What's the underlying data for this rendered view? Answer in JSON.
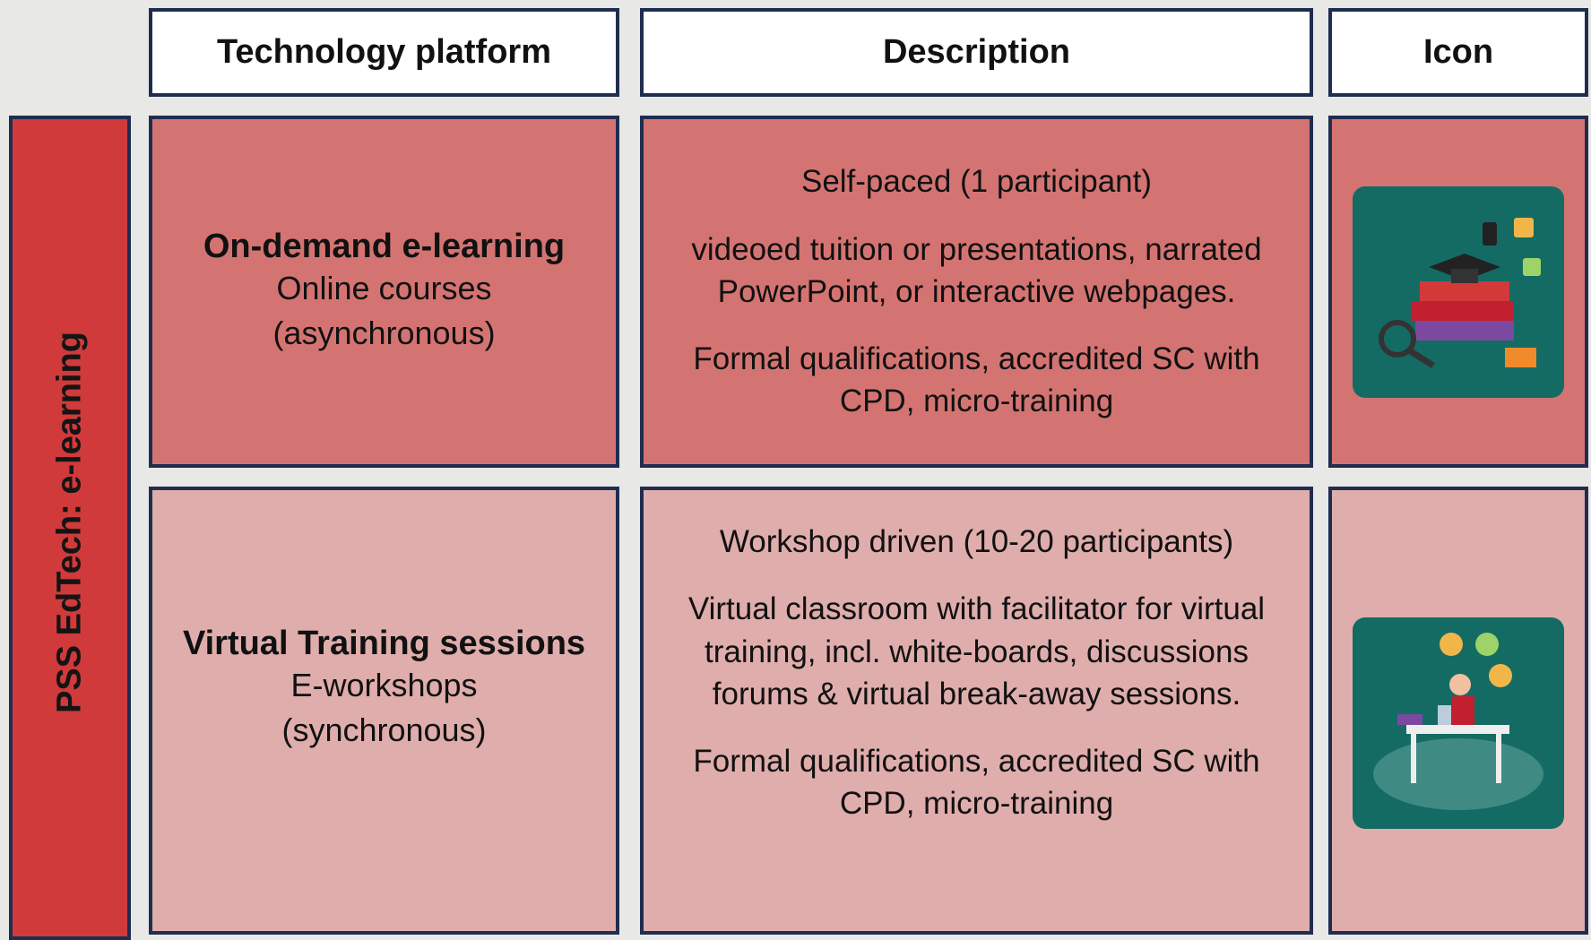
{
  "header": {
    "columns": [
      "Technology platform",
      "Description",
      "Icon"
    ]
  },
  "side_label": "PSS EdTech: e-learning",
  "rows": [
    {
      "title": "On-demand e-learning",
      "subtitle": [
        "Online courses",
        "(asynchronous)"
      ],
      "description": [
        "Self-paced (1 participant)",
        "videoed tuition or presentations, narrated PowerPoint, or interactive webpages.",
        "Formal qualifications, accredited SC with CPD, micro-training"
      ]
    },
    {
      "title": "Virtual Training sessions",
      "subtitle": [
        "E-workshops",
        "(synchronous)"
      ],
      "description": [
        "Workshop driven (10-20 participants)",
        "Virtual classroom with facilitator for virtual training, incl. white-boards, discussions forums & virtual break-away sessions.",
        "Formal qualifications, accredited SC with CPD, micro-training"
      ]
    }
  ]
}
